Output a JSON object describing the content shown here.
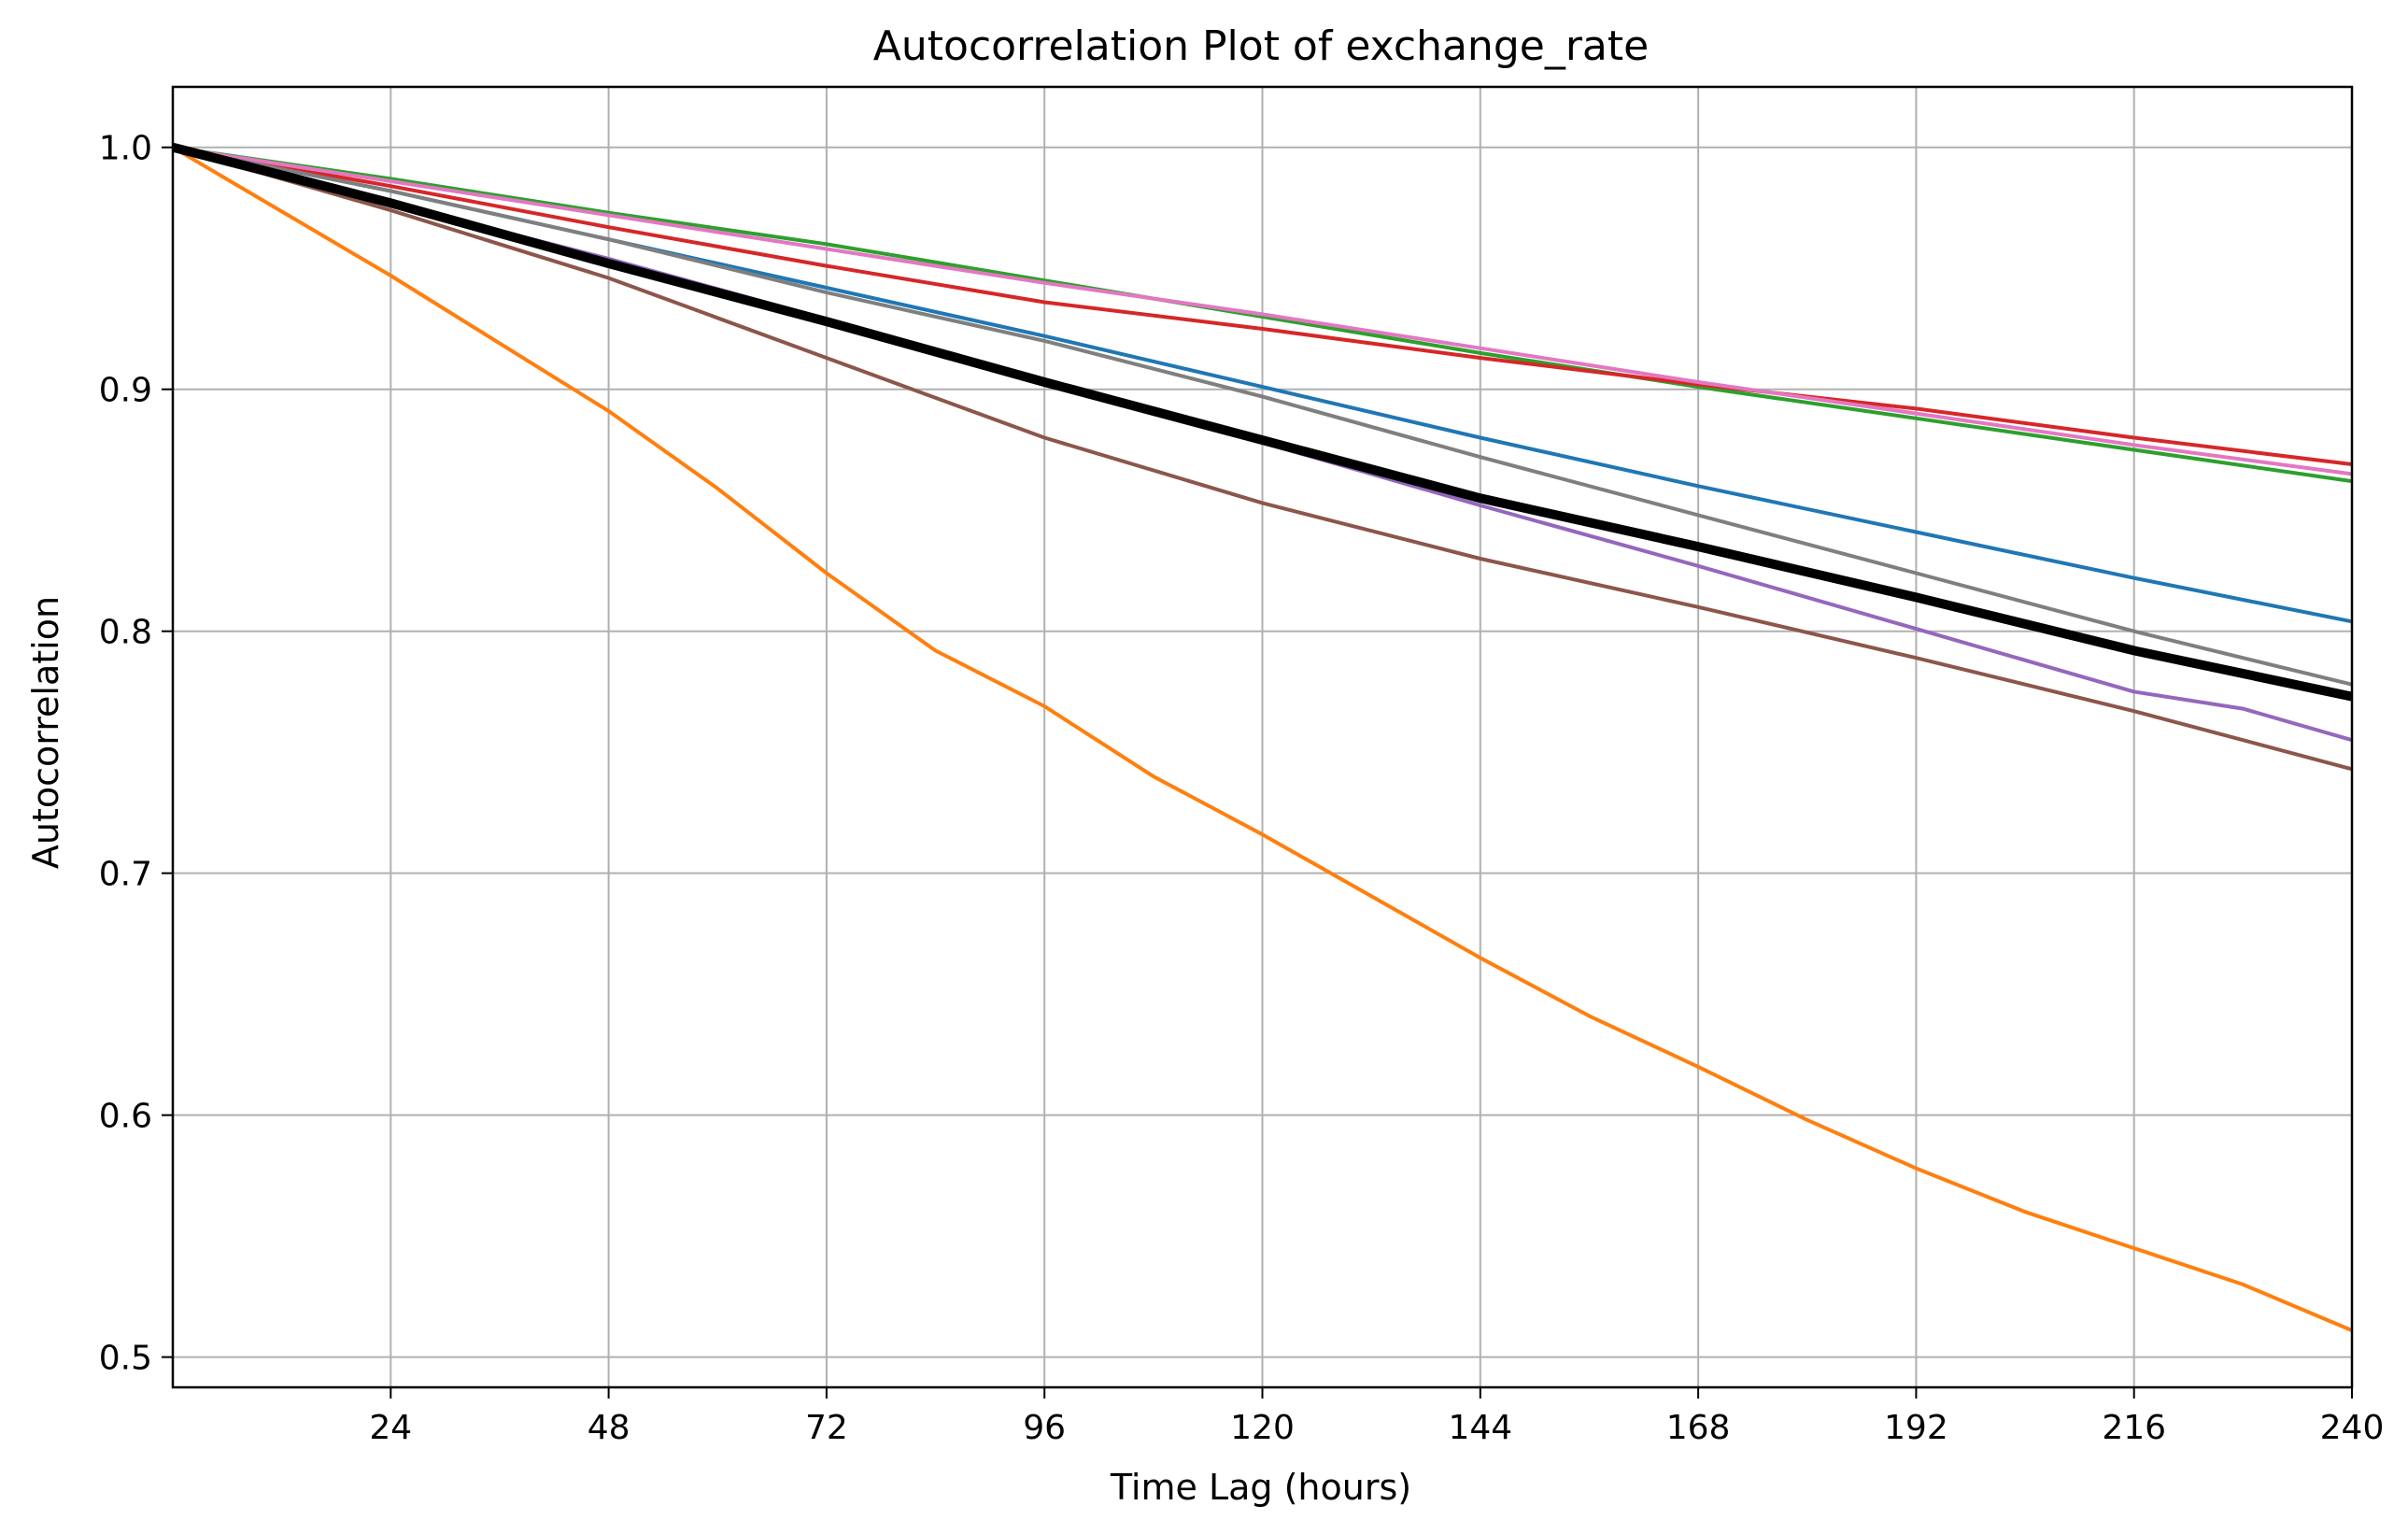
{
  "chart_data": {
    "type": "line",
    "title": "Autocorrelation Plot of exchange_rate",
    "xlabel": "Time Lag (hours)",
    "ylabel": "Autocorrelation",
    "xlim": [
      0,
      240
    ],
    "ylim": [
      0.4875,
      1.025
    ],
    "grid": true,
    "xticks": [
      24,
      48,
      72,
      96,
      120,
      144,
      168,
      192,
      216,
      240
    ],
    "xtick_labels": [
      "24",
      "48",
      "72",
      "96",
      "120",
      "144",
      "168",
      "192",
      "216",
      "240"
    ],
    "yticks": [
      0.5,
      0.6,
      0.7,
      0.8,
      0.9,
      1.0
    ],
    "ytick_labels": [
      "0.5",
      "0.6",
      "0.7",
      "0.8",
      "0.9",
      "1.0"
    ],
    "series": [
      {
        "color": "#1f77b4",
        "width": 2,
        "x": [
          0,
          24,
          48,
          72,
          96,
          120,
          144,
          168,
          192,
          216,
          240
        ],
        "y": [
          1.0,
          0.982,
          0.962,
          0.942,
          0.922,
          0.901,
          0.88,
          0.86,
          0.841,
          0.822,
          0.804
        ]
      },
      {
        "color": "#ff7f0e",
        "width": 2,
        "x": [
          0,
          24,
          48,
          60,
          72,
          84,
          96,
          108,
          120,
          144,
          156,
          168,
          180,
          192,
          204,
          216,
          228,
          240
        ],
        "y": [
          1.0,
          0.947,
          0.891,
          0.859,
          0.824,
          0.792,
          0.769,
          0.74,
          0.716,
          0.665,
          0.641,
          0.62,
          0.598,
          0.578,
          0.56,
          0.545,
          0.53,
          0.511
        ]
      },
      {
        "color": "#2ca02c",
        "width": 2,
        "x": [
          0,
          24,
          48,
          72,
          96,
          120,
          144,
          168,
          192,
          216,
          240
        ],
        "y": [
          1.0,
          0.987,
          0.973,
          0.96,
          0.945,
          0.93,
          0.915,
          0.901,
          0.888,
          0.875,
          0.862
        ]
      },
      {
        "color": "#d62728",
        "width": 2,
        "x": [
          0,
          24,
          48,
          72,
          96,
          120,
          144,
          168,
          192,
          216,
          240
        ],
        "y": [
          1.0,
          0.984,
          0.967,
          0.951,
          0.936,
          0.925,
          0.913,
          0.902,
          0.892,
          0.88,
          0.869
        ]
      },
      {
        "color": "#9467bd",
        "width": 2,
        "x": [
          0,
          24,
          48,
          72,
          96,
          120,
          144,
          168,
          192,
          216,
          228,
          240
        ],
        "y": [
          1.0,
          0.977,
          0.954,
          0.929,
          0.903,
          0.878,
          0.852,
          0.827,
          0.801,
          0.775,
          0.768,
          0.755
        ]
      },
      {
        "color": "#8c564b",
        "width": 2,
        "x": [
          0,
          24,
          48,
          72,
          96,
          120,
          144,
          168,
          192,
          216,
          240
        ],
        "y": [
          1.0,
          0.974,
          0.946,
          0.913,
          0.88,
          0.853,
          0.83,
          0.81,
          0.789,
          0.767,
          0.743
        ]
      },
      {
        "color": "#e377c2",
        "width": 2,
        "x": [
          0,
          24,
          48,
          72,
          96,
          120,
          144,
          168,
          192,
          216,
          240
        ],
        "y": [
          1.0,
          0.986,
          0.972,
          0.958,
          0.944,
          0.931,
          0.917,
          0.903,
          0.89,
          0.877,
          0.865
        ]
      },
      {
        "color": "#7f7f7f",
        "width": 2,
        "x": [
          0,
          24,
          48,
          72,
          96,
          120,
          144,
          168,
          192,
          216,
          240
        ],
        "y": [
          1.0,
          0.982,
          0.962,
          0.94,
          0.92,
          0.897,
          0.872,
          0.848,
          0.824,
          0.8,
          0.778
        ]
      },
      {
        "color": "#000000",
        "width": 5,
        "x": [
          0,
          24,
          48,
          72,
          96,
          120,
          144,
          168,
          192,
          216,
          240
        ],
        "y": [
          1.0,
          0.977,
          0.952,
          0.928,
          0.903,
          0.879,
          0.855,
          0.835,
          0.814,
          0.792,
          0.773
        ]
      }
    ]
  }
}
